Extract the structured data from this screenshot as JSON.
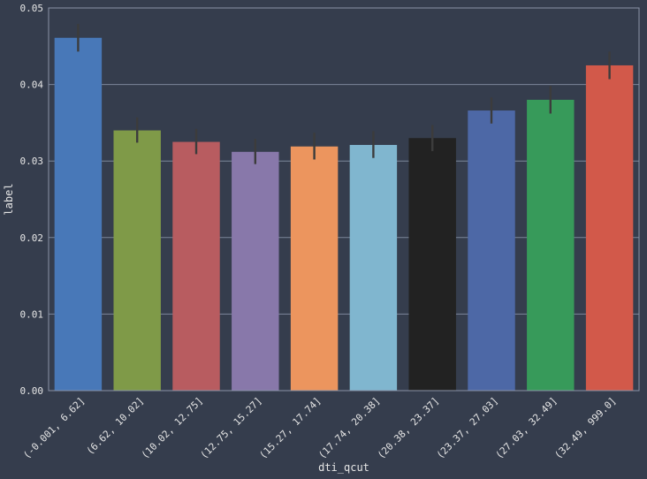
{
  "chart_data": {
    "type": "bar",
    "title": "",
    "xlabel": "dti_qcut",
    "ylabel": "label",
    "categories": [
      "(-0.001, 6.62]",
      "(6.62, 10.02]",
      "(10.02, 12.75]",
      "(12.75, 15.27]",
      "(15.27, 17.74]",
      "(17.74, 20.38]",
      "(20.38, 23.37]",
      "(23.37, 27.03]",
      "(27.03, 32.49]",
      "(32.49, 999.0]"
    ],
    "values": [
      0.0461,
      0.034,
      0.0325,
      0.0312,
      0.0319,
      0.0321,
      0.033,
      0.0366,
      0.038,
      0.0425
    ],
    "error_low": [
      0.0443,
      0.0324,
      0.0309,
      0.0296,
      0.0302,
      0.0304,
      0.0313,
      0.0349,
      0.0362,
      0.0407
    ],
    "error_high": [
      0.0479,
      0.0357,
      0.0342,
      0.0329,
      0.0337,
      0.0339,
      0.0347,
      0.0383,
      0.0398,
      0.0443
    ],
    "colors": [
      "#4878b8",
      "#7f9a48",
      "#b85c60",
      "#8878aa",
      "#ec955e",
      "#80b6cf",
      "#222222",
      "#4d68a6",
      "#379a5a",
      "#d2594a"
    ],
    "ylim": [
      0,
      0.05
    ],
    "yticks": [
      "0.00",
      "0.01",
      "0.02",
      "0.03",
      "0.04",
      "0.05"
    ],
    "grid": true,
    "legend": "none"
  }
}
